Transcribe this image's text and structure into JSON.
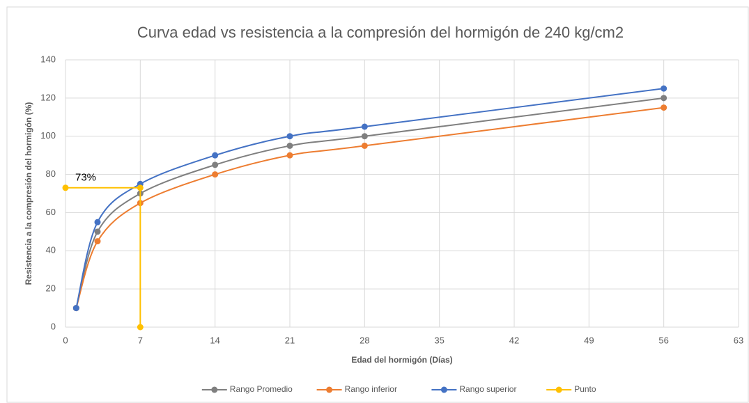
{
  "chart_data": {
    "type": "line",
    "title": "Curva edad vs resistencia a la compresión del hormigón de 240 kg/cm2",
    "x_label": "Edad del hormigón (Días)",
    "y_label": "Resistencia a la compresión del hormigón (%)",
    "x": [
      1,
      3,
      7,
      14,
      21,
      28,
      56
    ],
    "series": [
      {
        "name": "Rango Promedio",
        "color": "#7f7f7f",
        "smooth": true,
        "values": [
          10,
          50,
          70,
          85,
          95,
          100,
          120
        ]
      },
      {
        "name": "Rango inferior",
        "color": "#ed7d31",
        "smooth": true,
        "values": [
          10,
          45,
          65,
          80,
          90,
          95,
          115
        ]
      },
      {
        "name": "Rango superior",
        "color": "#4472c4",
        "smooth": true,
        "values": [
          10,
          55,
          75,
          90,
          100,
          105,
          125
        ]
      },
      {
        "name": "Punto",
        "color": "#ffc000",
        "smooth": false,
        "x": [
          0,
          7,
          7
        ],
        "values": [
          73,
          73,
          0
        ],
        "value_labels": [
          "73%",
          null,
          null
        ]
      }
    ],
    "xlim": [
      0,
      63
    ],
    "xticks": [
      0,
      7,
      14,
      21,
      28,
      35,
      42,
      49,
      56,
      63
    ],
    "ylim": [
      0,
      140
    ],
    "yticks": [
      0,
      20,
      40,
      60,
      80,
      100,
      120,
      140
    ],
    "grid": true,
    "legend": "bottom"
  }
}
